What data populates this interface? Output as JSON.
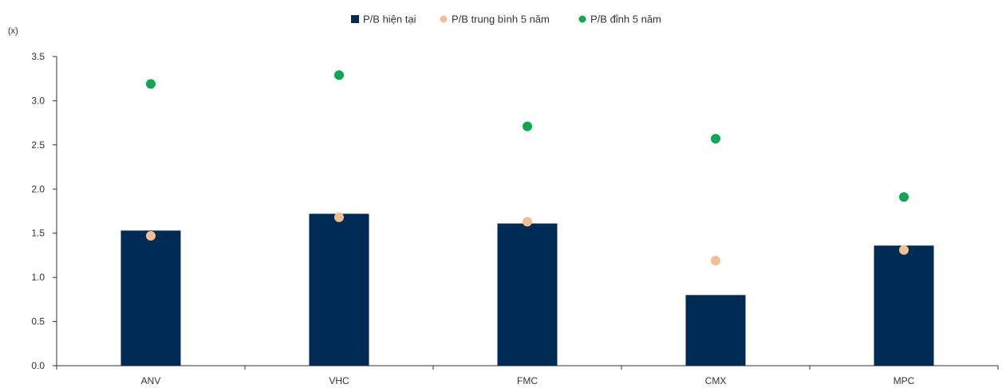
{
  "chart_data": {
    "type": "bar",
    "unit_label": "(x)",
    "categories": [
      "ANV",
      "VHC",
      "FMC",
      "CMX",
      "MPC"
    ],
    "ylim": [
      0,
      3.5
    ],
    "yticks": [
      "0.0",
      "0.5",
      "1.0",
      "1.5",
      "2.0",
      "2.5",
      "3.0",
      "3.5"
    ],
    "ytick_values": [
      0,
      0.5,
      1.0,
      1.5,
      2.0,
      2.5,
      3.0,
      3.5
    ],
    "grid": false,
    "legend_position": "top-center",
    "series": [
      {
        "name": "P/B hiện tại",
        "kind": "bar",
        "color": "#002b55",
        "marker": "square",
        "values": [
          1.53,
          1.72,
          1.61,
          0.8,
          1.36
        ]
      },
      {
        "name": "P/B trung bình 5 năm",
        "kind": "dot",
        "color": "#f2c08e",
        "marker": "circle",
        "values": [
          1.47,
          1.68,
          1.63,
          1.19,
          1.31
        ]
      },
      {
        "name": "P/B đỉnh 5 năm",
        "kind": "dot",
        "color": "#0aa84f",
        "marker": "circle",
        "values": [
          3.19,
          3.29,
          2.71,
          2.57,
          1.91
        ]
      }
    ]
  }
}
